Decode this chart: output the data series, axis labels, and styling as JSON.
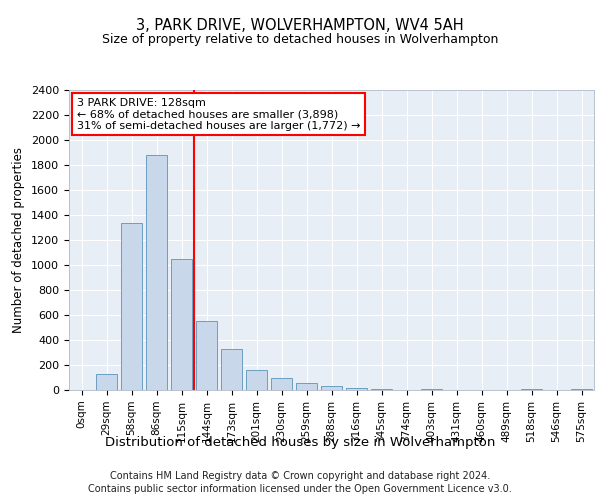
{
  "title1": "3, PARK DRIVE, WOLVERHAMPTON, WV4 5AH",
  "title2": "Size of property relative to detached houses in Wolverhampton",
  "xlabel": "Distribution of detached houses by size in Wolverhampton",
  "ylabel": "Number of detached properties",
  "footer1": "Contains HM Land Registry data © Crown copyright and database right 2024.",
  "footer2": "Contains public sector information licensed under the Open Government Licence v3.0.",
  "annotation_line1": "3 PARK DRIVE: 128sqm",
  "annotation_line2": "← 68% of detached houses are smaller (3,898)",
  "annotation_line3": "31% of semi-detached houses are larger (1,772) →",
  "bar_color": "#c8d8ea",
  "bar_edge_color": "#6a9fc0",
  "categories": [
    "0sqm",
    "29sqm",
    "58sqm",
    "86sqm",
    "115sqm",
    "144sqm",
    "173sqm",
    "201sqm",
    "230sqm",
    "259sqm",
    "288sqm",
    "316sqm",
    "345sqm",
    "374sqm",
    "403sqm",
    "431sqm",
    "460sqm",
    "489sqm",
    "518sqm",
    "546sqm",
    "575sqm"
  ],
  "values": [
    0,
    125,
    1340,
    1880,
    1050,
    550,
    330,
    160,
    100,
    55,
    30,
    20,
    10,
    0,
    5,
    0,
    0,
    0,
    5,
    0,
    5
  ],
  "ylim": [
    0,
    2400
  ],
  "yticks": [
    0,
    200,
    400,
    600,
    800,
    1000,
    1200,
    1400,
    1600,
    1800,
    2000,
    2200,
    2400
  ],
  "red_line_bin_index": 4.5,
  "bg_color": "#e8eef5",
  "grid_color": "white"
}
